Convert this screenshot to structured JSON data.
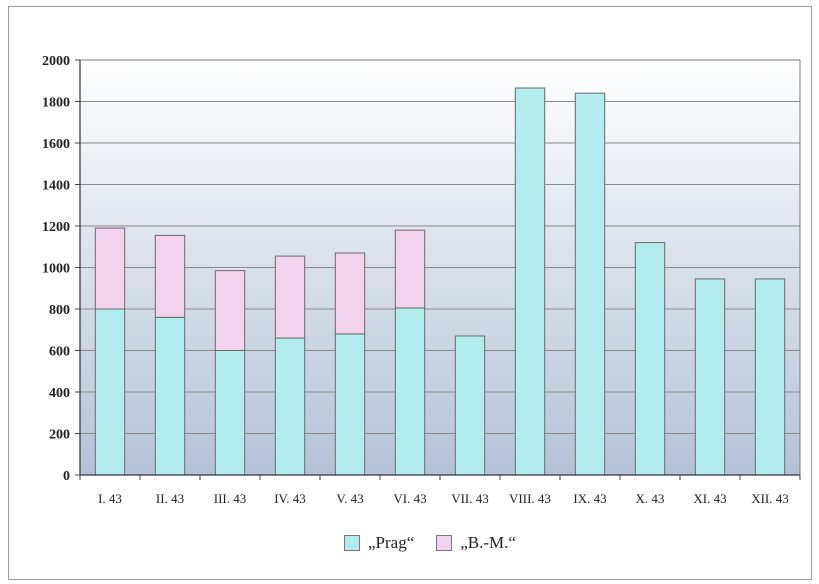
{
  "colors": {
    "prag": "#b3ecef",
    "bm": "#f2d2ef",
    "bar_outline": "#6a6a6a",
    "grid": "#8a8a8a",
    "plot_top": "#ffffff",
    "plot_bottom": "#b4c2d8"
  },
  "chart_data": {
    "type": "bar",
    "stacked": true,
    "title": "",
    "xlabel": "",
    "ylabel": "",
    "ylim": [
      0,
      2000
    ],
    "yticks": [
      "0",
      "200",
      "400",
      "600",
      "800",
      "1000",
      "1200",
      "1400",
      "1600",
      "1800",
      "2000"
    ],
    "grid": true,
    "legend": "bottom-center",
    "categories": [
      "I. 43",
      "II. 43",
      "III. 43",
      "IV. 43",
      "V. 43",
      "VI. 43",
      "VII. 43",
      "VIII. 43",
      "IX. 43",
      "X. 43",
      "XI. 43",
      "XII. 43"
    ],
    "series": [
      {
        "name": "„Prag“",
        "color": "#b3ecef",
        "values": [
          800,
          760,
          600,
          660,
          680,
          805,
          670,
          1865,
          1840,
          1120,
          945,
          945
        ]
      },
      {
        "name": "„B.-M.“",
        "color": "#f2d2ef",
        "values": [
          390,
          395,
          385,
          395,
          390,
          375,
          0,
          0,
          0,
          0,
          0,
          0
        ]
      }
    ]
  }
}
